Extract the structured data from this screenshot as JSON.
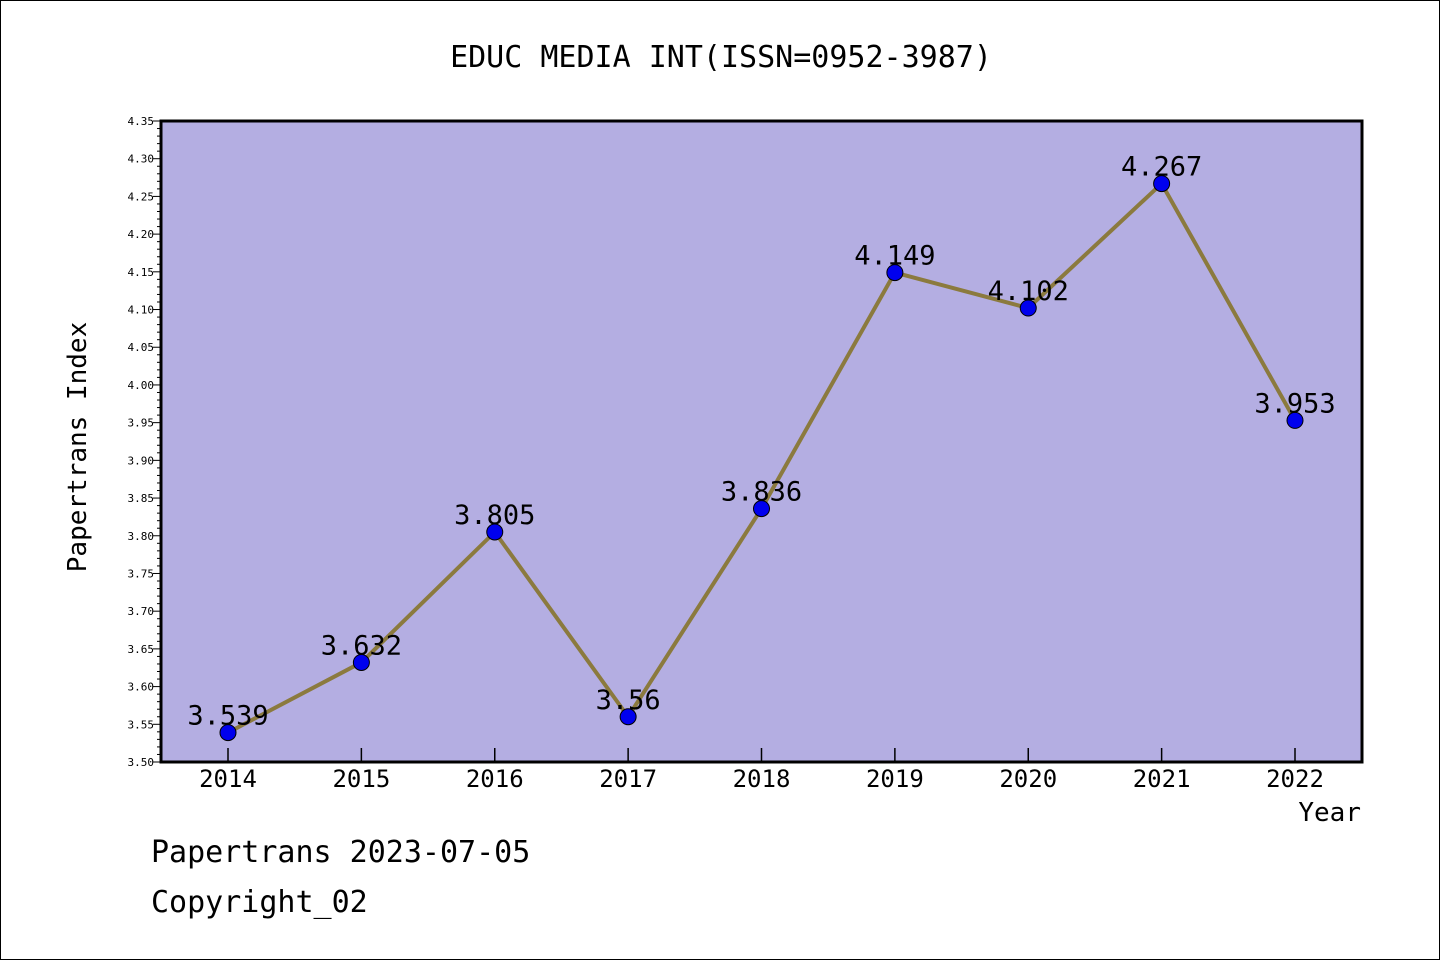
{
  "chart_data": {
    "type": "line",
    "title": "EDUC MEDIA INT(ISSN=0952-3987)",
    "xlabel": "Year",
    "ylabel": "Papertrans Index",
    "categories": [
      "2014",
      "2015",
      "2016",
      "2017",
      "2018",
      "2019",
      "2020",
      "2021",
      "2022"
    ],
    "series": [
      {
        "values": [
          3.539,
          3.632,
          3.805,
          3.56,
          3.836,
          4.149,
          4.102,
          4.267,
          3.953
        ],
        "labels": [
          "3.539",
          "3.632",
          "3.805",
          "3.56",
          "3.836",
          "4.149",
          "4.102",
          "4.267",
          "3.953"
        ]
      }
    ],
    "ylim": [
      3.5,
      4.35
    ],
    "yticks": [
      "3.50",
      "3.55",
      "3.60",
      "3.65",
      "3.70",
      "3.75",
      "3.80",
      "3.85",
      "3.90",
      "3.95",
      "4.00",
      "4.05",
      "4.10",
      "4.15",
      "4.20",
      "4.25",
      "4.30",
      "4.35"
    ],
    "grid": false,
    "colors": {
      "plot_background": "#b4aee2",
      "line": "#8b7a3e",
      "marker": "#0000ee"
    }
  },
  "footer": {
    "line1": "Papertrans 2023-07-05",
    "line2": "Copyright_02"
  }
}
